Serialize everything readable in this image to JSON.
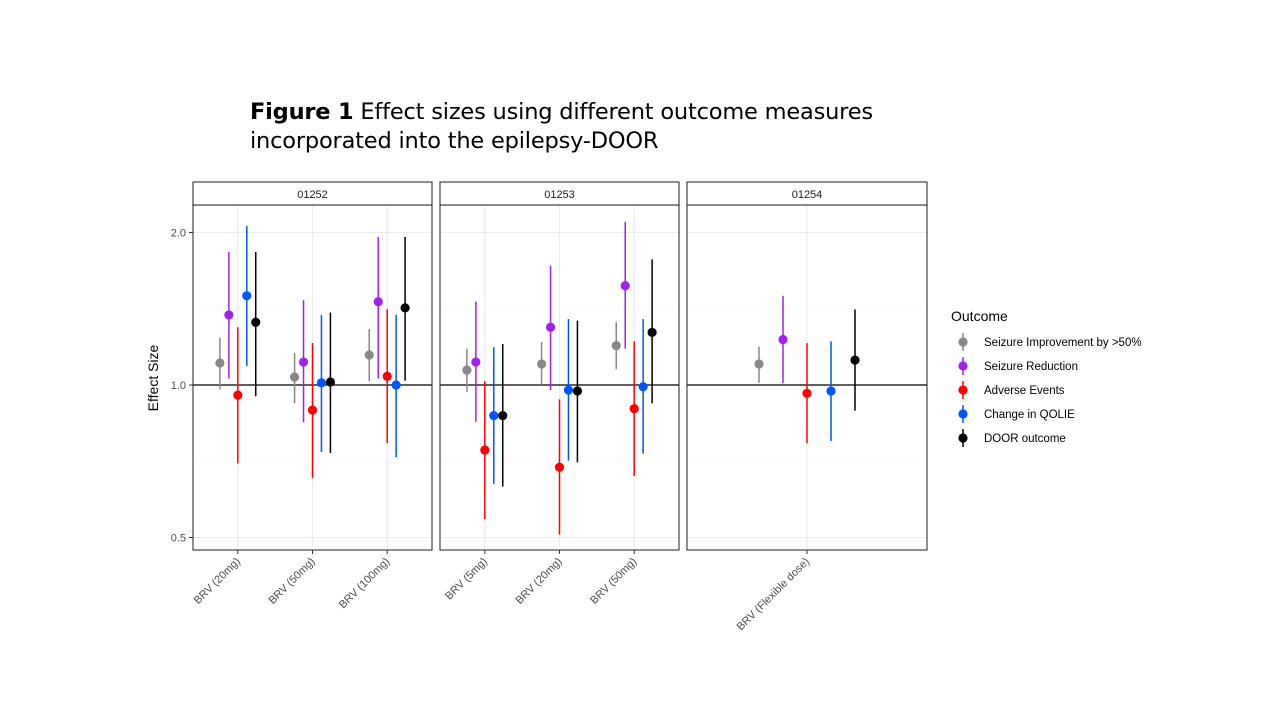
{
  "title": {
    "label": "Figure 1",
    "text": "Effect sizes using different outcome measures",
    "text_line2": "incorporated into the epilepsy-DOOR"
  },
  "chart_data": {
    "type": "scatter",
    "subtype": "point-range, faceted, dodged",
    "ylabel": "Effect Size",
    "xlabel": "",
    "y_scale": "log",
    "y_ticks": [
      "0.5",
      "1.0",
      "2.0"
    ],
    "ylim": [
      0.47,
      2.27
    ],
    "reference_line": 1.0,
    "grid": true,
    "legend": {
      "title": "Outcome",
      "placement": "right"
    },
    "series": [
      {
        "name": "Seizure Improvement by >50%",
        "color": "#888888"
      },
      {
        "name": "Seizure Reduction",
        "color": "#a020f0"
      },
      {
        "name": "Adverse Events",
        "color": "#ff0000"
      },
      {
        "name": "Change in QOLIE",
        "color": "#0055ff"
      },
      {
        "name": "DOOR outcome",
        "color": "#000000"
      }
    ],
    "panels": [
      {
        "strip": "01252",
        "categories": [
          {
            "label": "BRV (20mg)",
            "values": [
              [
                1.105,
                0.98,
                1.24
              ],
              [
                1.375,
                1.03,
                1.83
              ],
              [
                0.955,
                0.7,
                1.3
              ],
              [
                1.5,
                1.09,
                2.06
              ],
              [
                1.33,
                0.95,
                1.83
              ]
            ]
          },
          {
            "label": "BRV (50mg)",
            "values": [
              [
                1.037,
                0.92,
                1.157
              ],
              [
                1.11,
                0.845,
                1.47
              ],
              [
                0.892,
                0.655,
                1.21
              ],
              [
                1.01,
                0.737,
                1.375
              ],
              [
                1.014,
                0.734,
                1.39
              ]
            ]
          },
          {
            "label": "BRV (100mg)",
            "values": [
              [
                1.146,
                1.018,
                1.29
              ],
              [
                1.46,
                1.03,
                1.96
              ],
              [
                1.04,
                0.768,
                1.41
              ],
              [
                1.0,
                0.72,
                1.375
              ],
              [
                1.42,
                1.02,
                1.96
              ]
            ]
          }
        ]
      },
      {
        "strip": "01253",
        "categories": [
          {
            "label": "BRV (5mg)",
            "values": [
              [
                1.07,
                0.969,
                1.18
              ],
              [
                1.11,
                0.846,
                1.46
              ],
              [
                0.744,
                0.544,
                1.018
              ],
              [
                0.87,
                0.638,
                1.187
              ],
              [
                0.87,
                0.63,
                1.205
              ]
            ]
          },
          {
            "label": "BRV (20mg)",
            "values": [
              [
                1.1,
                1.0,
                1.216
              ],
              [
                1.3,
                0.977,
                1.72
              ],
              [
                0.688,
                0.507,
                0.937
              ],
              [
                0.977,
                0.709,
                1.35
              ],
              [
                0.973,
                0.704,
                1.34
              ]
            ]
          },
          {
            "label": "BRV (50mg)",
            "values": [
              [
                1.196,
                1.074,
                1.33
              ],
              [
                1.57,
                1.18,
                2.1
              ],
              [
                0.898,
                0.661,
                1.22
              ],
              [
                0.992,
                0.732,
                1.35
              ],
              [
                1.27,
                0.92,
                1.77
              ]
            ]
          }
        ]
      },
      {
        "strip": "01254",
        "categories": [
          {
            "label": "BRV (Flexible dose)",
            "values": [
              [
                1.1,
                1.01,
                1.19
              ],
              [
                1.23,
                1.008,
                1.5
              ],
              [
                0.963,
                0.767,
                1.21
              ],
              [
                0.973,
                0.775,
                1.22
              ],
              [
                1.12,
                0.89,
                1.41
              ]
            ]
          }
        ]
      }
    ]
  }
}
